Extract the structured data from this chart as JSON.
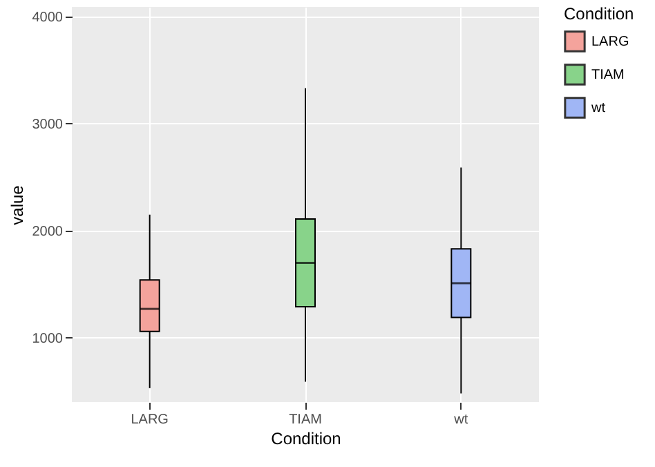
{
  "chart_data": {
    "type": "box",
    "xlabel": "Condition",
    "ylabel": "value",
    "legend_title": "Condition",
    "categories": [
      "LARG",
      "TIAM",
      "wt"
    ],
    "series": [
      {
        "name": "LARG",
        "color": "#f4a39c",
        "boxes": [
          {
            "low": 530,
            "q1": 1060,
            "median": 1270,
            "q3": 1540,
            "high": 2150
          },
          null,
          null
        ]
      },
      {
        "name": "TIAM",
        "color": "#88d38a",
        "boxes": [
          null,
          {
            "low": 590,
            "q1": 1290,
            "median": 1700,
            "q3": 2110,
            "high": 3330
          },
          null
        ]
      },
      {
        "name": "wt",
        "color": "#a0b6f5",
        "boxes": [
          null,
          null,
          {
            "low": 480,
            "q1": 1190,
            "median": 1510,
            "q3": 1830,
            "high": 2590
          }
        ]
      }
    ],
    "ylim": [
      400,
      4090
    ],
    "yticks": [
      1000,
      2000,
      3000,
      4000
    ],
    "grid": true,
    "legend": "right"
  }
}
